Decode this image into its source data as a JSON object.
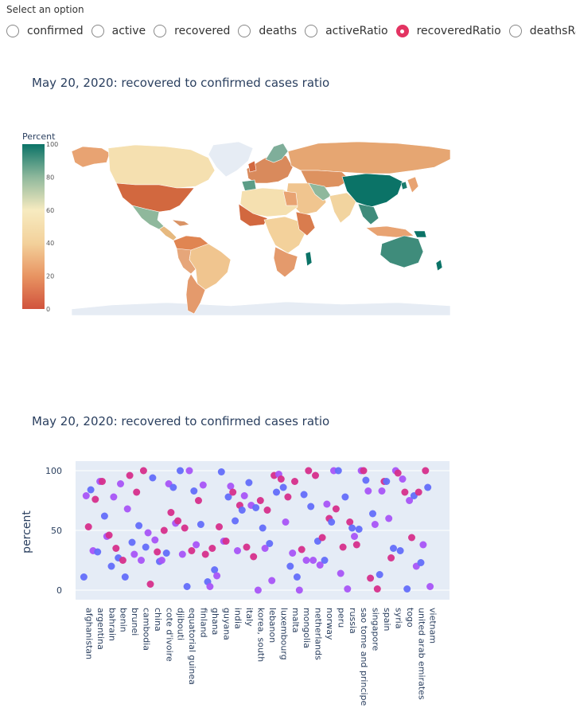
{
  "selector": {
    "label": "Select an option",
    "options": [
      {
        "label": "confirmed",
        "selected": false
      },
      {
        "label": "active",
        "selected": false
      },
      {
        "label": "recovered",
        "selected": false
      },
      {
        "label": "deaths",
        "selected": false
      },
      {
        "label": "activeRatio",
        "selected": false
      },
      {
        "label": "recoveredRatio",
        "selected": true
      },
      {
        "label": "deathsRatio",
        "selected": false
      }
    ],
    "accent": "#e33462"
  },
  "map": {
    "title": "May 20, 2020: recovered to confirmed cases ratio",
    "colorbar": {
      "title": "Percent",
      "ticks": [
        "100",
        "80",
        "60",
        "40",
        "20",
        "0"
      ]
    },
    "colorscale": [
      "#d1533d",
      "#e89462",
      "#f3d19b",
      "#f7ebc0",
      "#b7d3b5",
      "#5c9d87",
      "#0b7367"
    ],
    "land_default": "#e6ecf4"
  },
  "scatter": {
    "title": "May 20, 2020: recovered to confirmed cases ratio",
    "ylabel": "percent",
    "yticks": [
      "100",
      "50",
      "0"
    ],
    "xticks": [
      "afghanistan",
      "argentina",
      "bahrain",
      "benin",
      "brunei",
      "cambodia",
      "china",
      "cote d'ivoire",
      "djibouti",
      "equatorial guinea",
      "finland",
      "ghana",
      "guyana",
      "india",
      "italy",
      "korea, south",
      "lebanon",
      "luxembourg",
      "malta",
      "mongolia",
      "netherlands",
      "norway",
      "peru",
      "russia",
      "sao tome and principe",
      "singapore",
      "spain",
      "syria",
      "togo",
      "united arab emirates",
      "vietnam"
    ]
  },
  "chart_data": {
    "type": "scatter",
    "title": "May 20, 2020: recovered to confirmed cases ratio",
    "ylabel": "percent",
    "ylim": [
      -8,
      108
    ],
    "categories_labeled": [
      "afghanistan",
      "argentina",
      "bahrain",
      "benin",
      "brunei",
      "cambodia",
      "china",
      "cote d'ivoire",
      "djibouti",
      "equatorial guinea",
      "finland",
      "ghana",
      "guyana",
      "india",
      "italy",
      "korea, south",
      "lebanon",
      "luxembourg",
      "malta",
      "mongolia",
      "netherlands",
      "norway",
      "peru",
      "russia",
      "sao tome and principe",
      "singapore",
      "spain",
      "syria",
      "togo",
      "united arab emirates",
      "vietnam"
    ],
    "values": [
      11,
      79,
      53,
      84,
      33,
      76,
      32,
      91,
      91,
      62,
      45,
      46,
      20,
      78,
      35,
      27,
      89,
      25,
      11,
      68,
      96,
      40,
      30,
      82,
      54,
      25,
      100,
      36,
      48,
      5,
      94,
      42,
      32,
      24,
      25,
      50,
      31,
      89,
      65,
      86,
      56,
      58,
      100,
      30,
      52,
      3,
      100,
      33,
      83,
      38,
      75,
      55,
      88,
      30,
      7,
      3,
      35,
      17,
      12,
      53,
      99,
      41,
      41,
      78,
      87,
      82,
      58,
      33,
      71,
      67,
      79,
      36,
      90,
      71,
      28,
      69,
      0,
      75,
      52,
      35,
      67,
      39,
      8,
      96,
      82,
      97,
      93,
      86,
      57,
      78,
      20,
      31,
      91,
      11,
      0,
      34,
      80,
      25,
      100,
      70,
      25,
      96,
      41,
      21,
      44,
      25,
      72,
      60,
      57,
      100,
      68,
      100,
      14,
      36,
      78,
      1,
      57,
      52,
      45,
      38,
      51,
      100,
      100,
      92,
      83,
      10,
      64,
      55,
      1,
      13,
      83,
      91,
      91,
      60,
      27,
      35,
      100,
      98,
      33,
      93,
      82,
      1,
      75,
      44,
      79,
      20,
      82,
      23,
      38,
      100,
      86,
      3
    ]
  }
}
